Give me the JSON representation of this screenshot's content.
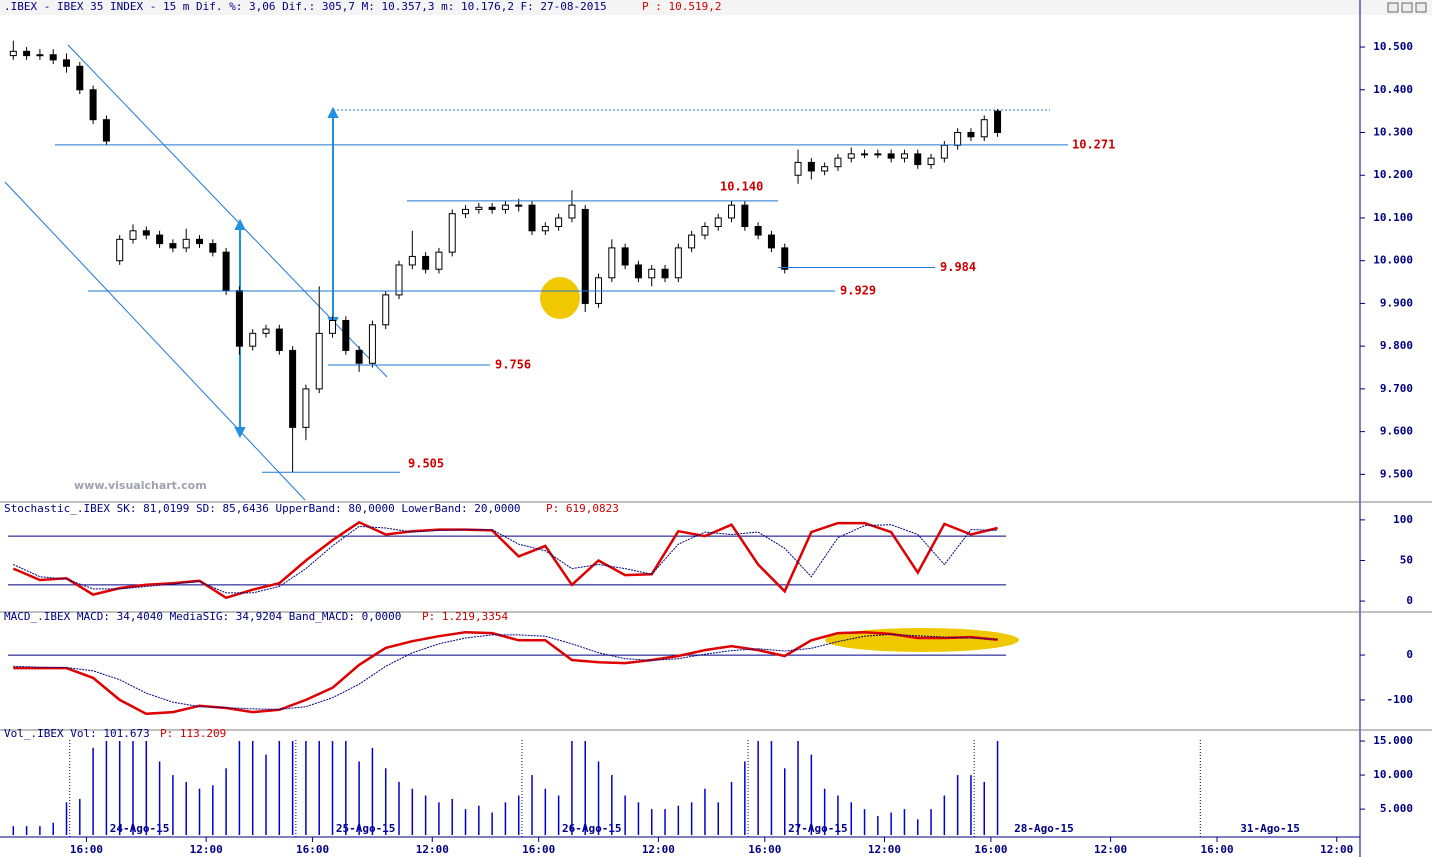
{
  "watermark": "www.visualchart.com",
  "time_axis": {
    "xlim": [
      -2,
      202.5
    ],
    "xticks": [
      {
        "value": 11,
        "label": "16:00"
      },
      {
        "value": 29,
        "label": "12:00"
      },
      {
        "value": 45,
        "label": "16:00"
      },
      {
        "value": 63,
        "label": "12:00"
      },
      {
        "value": 79,
        "label": "16:00"
      },
      {
        "value": 97,
        "label": "12:00"
      },
      {
        "value": 113,
        "label": "16:00"
      },
      {
        "value": 131,
        "label": "12:00"
      },
      {
        "value": 147,
        "label": "16:00"
      },
      {
        "value": 165,
        "label": "12:00"
      },
      {
        "value": 181,
        "label": "16:00"
      },
      {
        "value": 199,
        "label": "12:00"
      }
    ],
    "date_labels": [
      {
        "value": 14.5,
        "label": "24-Ago-15"
      },
      {
        "value": 48.5,
        "label": "25-Ago-15"
      },
      {
        "value": 82.5,
        "label": "26-Ago-15"
      },
      {
        "value": 116.5,
        "label": "27-Ago-15"
      },
      {
        "value": 150.5,
        "label": "28-Ago-15"
      },
      {
        "value": 184.5,
        "label": "31-Ago-15"
      }
    ]
  },
  "chart_data": [
    {
      "type": "candlestick",
      "title": ".IBEX - IBEX 35 INDEX -  15 m Dif. %: 3,06 Dif.: 305,7 M: 10.357,3 m: 10.176,2 F: 27-08-2015",
      "p_label": "P : 10.519,2",
      "up_color": "#ffffff",
      "down_color": "#000000",
      "ylim": [
        9440,
        10575
      ],
      "yticks": [
        {
          "value": 9500,
          "label": "9.500"
        },
        {
          "value": 9600,
          "label": "9.600"
        },
        {
          "value": 9700,
          "label": "9.700"
        },
        {
          "value": 9800,
          "label": "9.800"
        },
        {
          "value": 9900,
          "label": "9.900"
        },
        {
          "value": 10000,
          "label": "10.000"
        },
        {
          "value": 10100,
          "label": "10.100"
        },
        {
          "value": 10200,
          "label": "10.200"
        },
        {
          "value": 10300,
          "label": "10.300"
        },
        {
          "value": 10400,
          "label": "10.400"
        },
        {
          "value": 10500,
          "label": "10.500"
        }
      ],
      "x": [
        0,
        2,
        4,
        6,
        8,
        10,
        12,
        14,
        16,
        18,
        20,
        22,
        24,
        26,
        28,
        30,
        32,
        34,
        36,
        38,
        40,
        42,
        44,
        46,
        48,
        50,
        52,
        54,
        56,
        58,
        60,
        62,
        64,
        66,
        68,
        70,
        72,
        74,
        76,
        78,
        80,
        82,
        84,
        86,
        88,
        90,
        92,
        94,
        96,
        98,
        100,
        102,
        104,
        106,
        108,
        110,
        112,
        114,
        116,
        118,
        120,
        122,
        124,
        126,
        128,
        130,
        132,
        134,
        136,
        138,
        140,
        142,
        144,
        146,
        148
      ],
      "open": [
        10480,
        10490,
        10480,
        10482,
        10470,
        10455,
        10400,
        10330,
        10000,
        10050,
        10070,
        10060,
        10040,
        10030,
        10050,
        10040,
        10020,
        9930,
        9800,
        9830,
        9840,
        9790,
        9610,
        9700,
        9830,
        9860,
        9790,
        9760,
        9850,
        9920,
        9990,
        10010,
        9980,
        10020,
        10110,
        10120,
        10125,
        10120,
        10130,
        10130,
        10070,
        10080,
        10100,
        10120,
        9900,
        9960,
        10030,
        9990,
        9960,
        9980,
        9960,
        10030,
        10060,
        10080,
        10100,
        10130,
        10080,
        10060,
        10030,
        10200,
        10230,
        10210,
        10220,
        10240,
        10250,
        10250,
        10250,
        10240,
        10250,
        10225,
        10240,
        10270,
        10300,
        10290,
        10350
      ],
      "high": [
        10515,
        10500,
        10495,
        10495,
        10485,
        10465,
        10410,
        10340,
        10060,
        10085,
        10080,
        10070,
        10050,
        10075,
        10060,
        10050,
        10030,
        9940,
        9840,
        9850,
        9850,
        9800,
        9710,
        9940,
        9870,
        9870,
        9800,
        9860,
        9930,
        10000,
        10070,
        10020,
        10030,
        10120,
        10130,
        10135,
        10135,
        10140,
        10145,
        10140,
        10090,
        10110,
        10165,
        10130,
        9970,
        10050,
        10040,
        10000,
        9990,
        9990,
        10040,
        10070,
        10090,
        10110,
        10140,
        10140,
        10090,
        10070,
        10040,
        10260,
        10240,
        10230,
        10250,
        10265,
        10260,
        10260,
        10260,
        10260,
        10260,
        10250,
        10280,
        10310,
        10310,
        10340,
        10355
      ],
      "low": [
        10470,
        10470,
        10470,
        10460,
        10440,
        10390,
        10320,
        10270,
        9990,
        10040,
        10050,
        10030,
        10020,
        10020,
        10030,
        10010,
        9920,
        9780,
        9790,
        9820,
        9780,
        9505,
        9580,
        9690,
        9820,
        9780,
        9740,
        9750,
        9840,
        9910,
        9980,
        9970,
        9970,
        10010,
        10100,
        10110,
        10110,
        10110,
        10115,
        10060,
        10060,
        10070,
        10090,
        9880,
        9890,
        9950,
        9980,
        9950,
        9940,
        9950,
        9950,
        10020,
        10050,
        10070,
        10090,
        10070,
        10050,
        10020,
        9970,
        10180,
        10190,
        10200,
        10210,
        10230,
        10240,
        10240,
        10230,
        10230,
        10215,
        10215,
        10230,
        10260,
        10280,
        10280,
        10290
      ],
      "close": [
        10490,
        10480,
        10482,
        10470,
        10455,
        10400,
        10330,
        10280,
        10050,
        10070,
        10060,
        10040,
        10030,
        10050,
        10040,
        10020,
        9930,
        9800,
        9830,
        9840,
        9790,
        9610,
        9700,
        9830,
        9860,
        9790,
        9760,
        9850,
        9920,
        9990,
        10010,
        9980,
        10020,
        10110,
        10120,
        10125,
        10120,
        10130,
        10130,
        10070,
        10080,
        10100,
        10130,
        9900,
        9960,
        10030,
        9990,
        9960,
        9980,
        9960,
        10030,
        10060,
        10080,
        10100,
        10130,
        10080,
        10060,
        10030,
        9980,
        10230,
        10210,
        10220,
        10240,
        10250,
        10250,
        10250,
        10240,
        10250,
        10225,
        10240,
        10270,
        10300,
        10290,
        10330,
        10300
      ],
      "annotations": [
        {
          "value": 10271,
          "label": "10.271"
        },
        {
          "value": 10140,
          "label": "10.140"
        },
        {
          "value": 9984,
          "label": "9.984"
        },
        {
          "value": 9929,
          "label": "9.929"
        },
        {
          "value": 9756,
          "label": "9.756"
        },
        {
          "value": 9505,
          "label": "9.505"
        }
      ]
    },
    {
      "type": "line",
      "title": "Stochastic_.IBEX SK: 81,0199 SD: 85,6436 UpperBand: 80,0000 LowerBand: 20,0000",
      "p_label": "P: 619,0823",
      "ylim": [
        -11,
        106
      ],
      "yticks": [
        0,
        50,
        100
      ],
      "bands": [
        80,
        20
      ],
      "band_color": "#000080",
      "x": [
        0,
        4,
        8,
        12,
        16,
        20,
        24,
        28,
        32,
        36,
        40,
        44,
        48,
        52,
        56,
        60,
        64,
        68,
        72,
        76,
        80,
        84,
        88,
        92,
        96,
        100,
        104,
        108,
        112,
        116,
        120,
        124,
        128,
        132,
        136,
        140,
        144,
        148
      ],
      "series": [
        {
          "name": "SK",
          "color": "#dd0000",
          "width": 2.5,
          "values": [
            40,
            26,
            28,
            8,
            16,
            20,
            22,
            25,
            4,
            14,
            22,
            50,
            75,
            97,
            82,
            86,
            88,
            88,
            87,
            55,
            68,
            20,
            50,
            32,
            33,
            86,
            80,
            94,
            45,
            12,
            85,
            96,
            96,
            85,
            35,
            95,
            82,
            90
          ]
        },
        {
          "name": "SD",
          "color": "#000080",
          "width": 1,
          "dash": "2,1",
          "values": [
            45,
            30,
            27,
            15,
            15,
            18,
            21,
            24,
            10,
            10,
            18,
            40,
            68,
            92,
            90,
            85,
            87,
            88,
            88,
            70,
            62,
            40,
            45,
            40,
            33,
            70,
            85,
            82,
            85,
            65,
            30,
            78,
            93,
            94,
            82,
            45,
            88,
            87
          ]
        }
      ]
    },
    {
      "type": "line",
      "title": "MACD_.IBEX MACD: 34,4040 MediaSIG: 34,9204 Band_MACD: 0,0000",
      "p_label": "P: 1.219,3354",
      "ylim": [
        -167,
        67
      ],
      "yticks": [
        -100,
        0
      ],
      "bands": [
        0
      ],
      "band_color": "#000080",
      "x": [
        0,
        4,
        8,
        12,
        16,
        20,
        24,
        28,
        32,
        36,
        40,
        44,
        48,
        52,
        56,
        60,
        64,
        68,
        72,
        76,
        80,
        84,
        88,
        92,
        96,
        100,
        104,
        108,
        112,
        116,
        120,
        124,
        128,
        132,
        136,
        140,
        144,
        148
      ],
      "series": [
        {
          "name": "MACD",
          "color": "#dd0000",
          "width": 2.5,
          "values": [
            -29,
            -29,
            -29,
            -51,
            -100,
            -131,
            -127,
            -113,
            -118,
            -127,
            -122,
            -100,
            -73,
            -22,
            16,
            31,
            42,
            51,
            49,
            33,
            33,
            -11,
            -16,
            -18,
            -11,
            -2,
            11,
            20,
            11,
            -2,
            33,
            49,
            51,
            47,
            38,
            38,
            40,
            34
          ]
        },
        {
          "name": "MediaSIG",
          "color": "#000080",
          "width": 1,
          "dash": "2,1",
          "values": [
            -25,
            -27,
            -28,
            -35,
            -55,
            -85,
            -105,
            -115,
            -117,
            -120,
            -121,
            -115,
            -95,
            -65,
            -25,
            5,
            25,
            38,
            45,
            45,
            42,
            25,
            5,
            -8,
            -12,
            -8,
            2,
            10,
            14,
            9,
            15,
            30,
            42,
            46,
            43,
            40,
            38,
            35
          ]
        }
      ]
    },
    {
      "type": "bar",
      "title": "Vol_.IBEX Vol: 101.673",
      "p_label": "P: 113.209",
      "color": "#0000cc",
      "ylim": [
        1200,
        15150
      ],
      "yticks": [
        {
          "value": 5000,
          "label": "5.000"
        },
        {
          "value": 10000,
          "label": "10.000"
        },
        {
          "value": 15000,
          "label": "15.000"
        }
      ],
      "x": [
        0,
        2,
        4,
        6,
        8,
        10,
        12,
        14,
        16,
        18,
        20,
        22,
        24,
        26,
        28,
        30,
        32,
        34,
        36,
        38,
        40,
        42,
        44,
        46,
        48,
        50,
        52,
        54,
        56,
        58,
        60,
        62,
        64,
        66,
        68,
        70,
        72,
        74,
        76,
        78,
        80,
        82,
        84,
        86,
        88,
        90,
        92,
        94,
        96,
        98,
        100,
        102,
        104,
        106,
        108,
        110,
        112,
        114,
        116,
        118,
        120,
        122,
        124,
        126,
        128,
        130,
        132,
        134,
        136,
        138,
        140,
        142,
        144,
        146,
        148
      ],
      "values": [
        2500,
        2500,
        2500,
        3000,
        6000,
        6500,
        14000,
        15000,
        15000,
        15000,
        15000,
        12000,
        10000,
        9000,
        8000,
        8500,
        11000,
        15000,
        15000,
        13000,
        15000,
        15000,
        15000,
        15000,
        15000,
        15000,
        12000,
        14000,
        11000,
        9000,
        8000,
        7000,
        6000,
        6500,
        5000,
        5500,
        4500,
        6000,
        7000,
        10000,
        8000,
        7000,
        15000,
        15000,
        12000,
        10000,
        7000,
        6000,
        5000,
        5000,
        5500,
        6000,
        8000,
        6000,
        9000,
        12000,
        15000,
        15000,
        11000,
        15000,
        13000,
        8000,
        7000,
        6000,
        5000,
        4000,
        4500,
        5000,
        3500,
        5000,
        7000,
        10000,
        10000,
        9000,
        15000
      ]
    }
  ]
}
